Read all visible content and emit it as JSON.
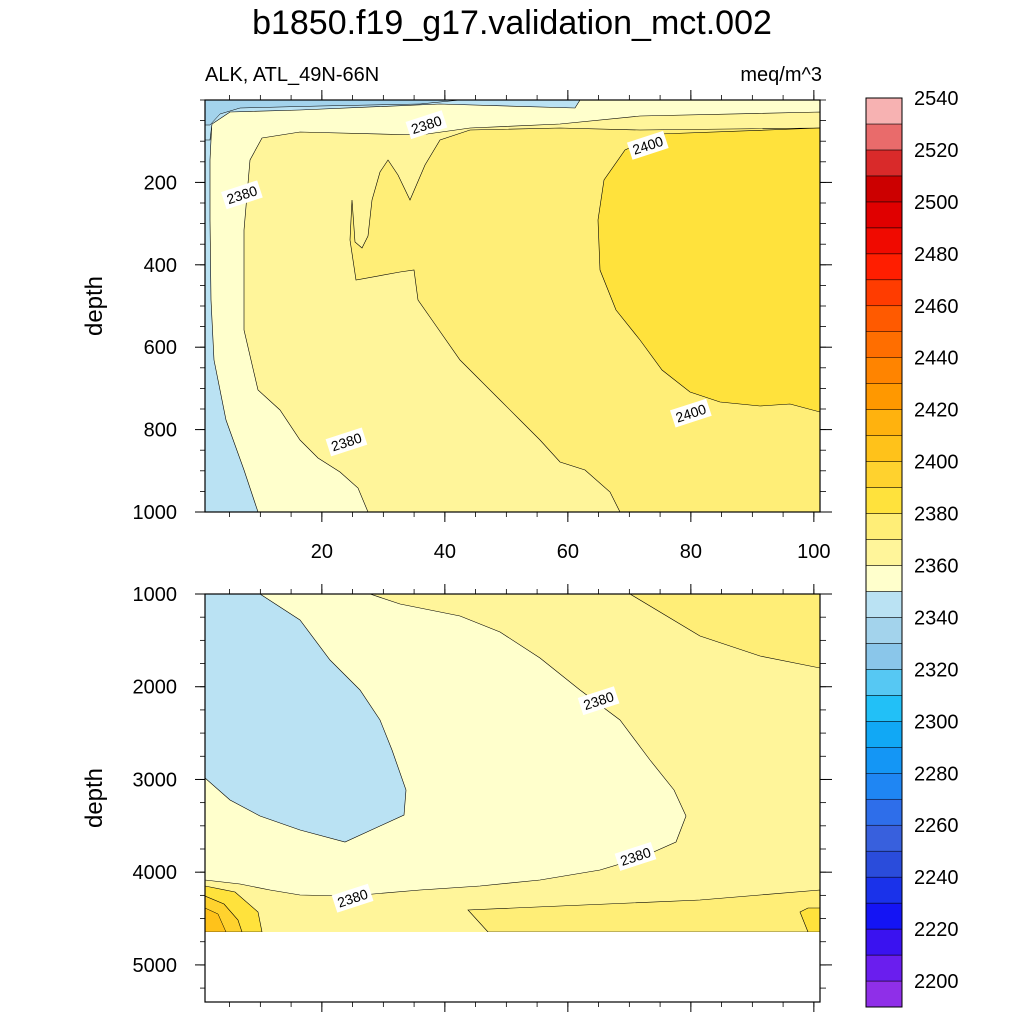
{
  "title": "b1850.f19_g17.validation_mct.002",
  "subtitle_left": "ALK, ATL_49N-66N",
  "subtitle_right": "meq/m^3",
  "ylabel_top": "depth",
  "ylabel_bottom": "depth",
  "chart_data": [
    {
      "type": "heatmap",
      "panel": "upper",
      "xlim": [
        1,
        101
      ],
      "ylim": [
        1000,
        0
      ],
      "x_ticks": [
        20,
        40,
        60,
        80,
        100
      ],
      "y_ticks": [
        200,
        400,
        600,
        800,
        1000
      ],
      "ylabel": "depth",
      "contour_labels": [
        {
          "value": "2380",
          "x": 37,
          "y": 60
        },
        {
          "value": "2400",
          "x": 73,
          "y": 110
        },
        {
          "value": "2380",
          "x": 7,
          "y": 230
        },
        {
          "value": "2400",
          "x": 80,
          "y": 760
        },
        {
          "value": "2380",
          "x": 24,
          "y": 830
        }
      ]
    },
    {
      "type": "heatmap",
      "panel": "lower",
      "xlim": [
        1,
        101
      ],
      "ylim": [
        5400,
        1000
      ],
      "x_ticks": [
        20,
        40,
        60,
        80,
        100
      ],
      "y_ticks": [
        1000,
        2000,
        3000,
        4000,
        5000
      ],
      "ylabel": "depth",
      "contour_labels": [
        {
          "value": "2380",
          "x": 65,
          "y": 2150
        },
        {
          "value": "2380",
          "x": 71,
          "y": 3830
        },
        {
          "value": "2380",
          "x": 25,
          "y": 4280
        }
      ]
    }
  ],
  "colorbar": {
    "labels": [
      "2200",
      "2220",
      "2240",
      "2260",
      "2280",
      "2300",
      "2320",
      "2340",
      "2360",
      "2380",
      "2400",
      "2420",
      "2440",
      "2460",
      "2480",
      "2500",
      "2520",
      "2540"
    ],
    "colors": [
      "#8f2fe8",
      "#6a1eee",
      "#3a12f0",
      "#1414f4",
      "#1a32ea",
      "#2a4cdb",
      "#3860dd",
      "#2e6eea",
      "#1f86f3",
      "#1496f5",
      "#11a8f5",
      "#22c0f7",
      "#56c8f3",
      "#8ac6ea",
      "#a3d3ec",
      "#bae2f3",
      "#ffffcc",
      "#fff59a",
      "#ffee77",
      "#ffe23c",
      "#ffd22e",
      "#ffc21a",
      "#ffb20e",
      "#ff9800",
      "#ff8400",
      "#ff6e00",
      "#ff5a00",
      "#ff3c00",
      "#ff1e00",
      "#f00a00",
      "#e00000",
      "#cc0000",
      "#d92a2a",
      "#e96b6b",
      "#f7b2b2"
    ]
  }
}
